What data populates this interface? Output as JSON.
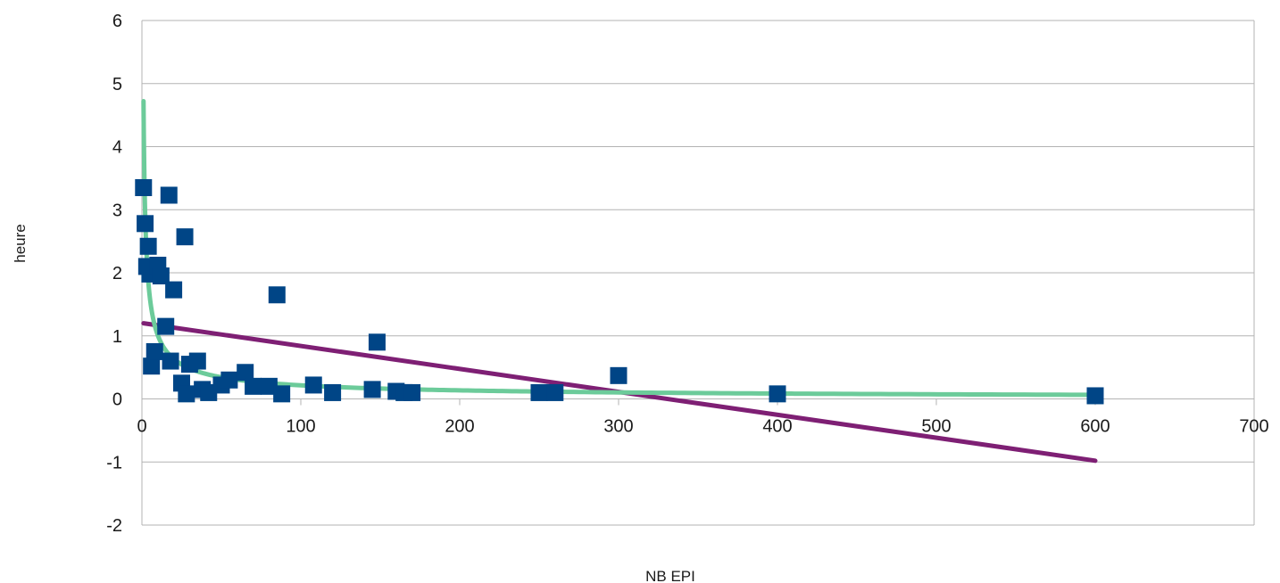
{
  "chart_data": {
    "type": "scatter",
    "xlabel": "NB EPI",
    "ylabel": "heure",
    "xlim": [
      0,
      700
    ],
    "ylim": [
      -2,
      6
    ],
    "x_ticks": [
      "0",
      "100",
      "200",
      "300",
      "400",
      "500",
      "600",
      "700"
    ],
    "y_ticks": [
      "-2",
      "-1",
      "0",
      "1",
      "2",
      "3",
      "4",
      "5",
      "6"
    ],
    "grid": true,
    "legend": "none",
    "colors": {
      "points": "#004586",
      "linear_trend": "#7e1f74",
      "power_trend": "#6ccb9a",
      "grid": "#b3b3b3"
    },
    "series": [
      {
        "type": "scatter",
        "points": [
          [
            1,
            3.35
          ],
          [
            2,
            2.78
          ],
          [
            3,
            2.1
          ],
          [
            4,
            2.42
          ],
          [
            5,
            1.98
          ],
          [
            6,
            0.52
          ],
          [
            8,
            0.75
          ],
          [
            10,
            2.12
          ],
          [
            12,
            1.95
          ],
          [
            15,
            1.15
          ],
          [
            17,
            3.23
          ],
          [
            18,
            0.6
          ],
          [
            20,
            1.73
          ],
          [
            25,
            0.25
          ],
          [
            27,
            2.57
          ],
          [
            28,
            0.08
          ],
          [
            30,
            0.55
          ],
          [
            35,
            0.6
          ],
          [
            38,
            0.15
          ],
          [
            42,
            0.1
          ],
          [
            50,
            0.22
          ],
          [
            55,
            0.3
          ],
          [
            65,
            0.42
          ],
          [
            70,
            0.2
          ],
          [
            80,
            0.2
          ],
          [
            85,
            1.65
          ],
          [
            88,
            0.08
          ],
          [
            108,
            0.22
          ],
          [
            120,
            0.1
          ],
          [
            145,
            0.15
          ],
          [
            148,
            0.9
          ],
          [
            160,
            0.12
          ],
          [
            165,
            0.1
          ],
          [
            170,
            0.1
          ],
          [
            250,
            0.1
          ],
          [
            260,
            0.1
          ],
          [
            300,
            0.37
          ],
          [
            400,
            0.08
          ],
          [
            600,
            0.05
          ]
        ]
      },
      {
        "type": "line",
        "points": [
          [
            1,
            1.2
          ],
          [
            600,
            -0.98
          ]
        ]
      },
      {
        "type": "power-curve",
        "a": 4.72,
        "b": -0.67,
        "x_range": [
          1,
          600
        ]
      }
    ]
  }
}
